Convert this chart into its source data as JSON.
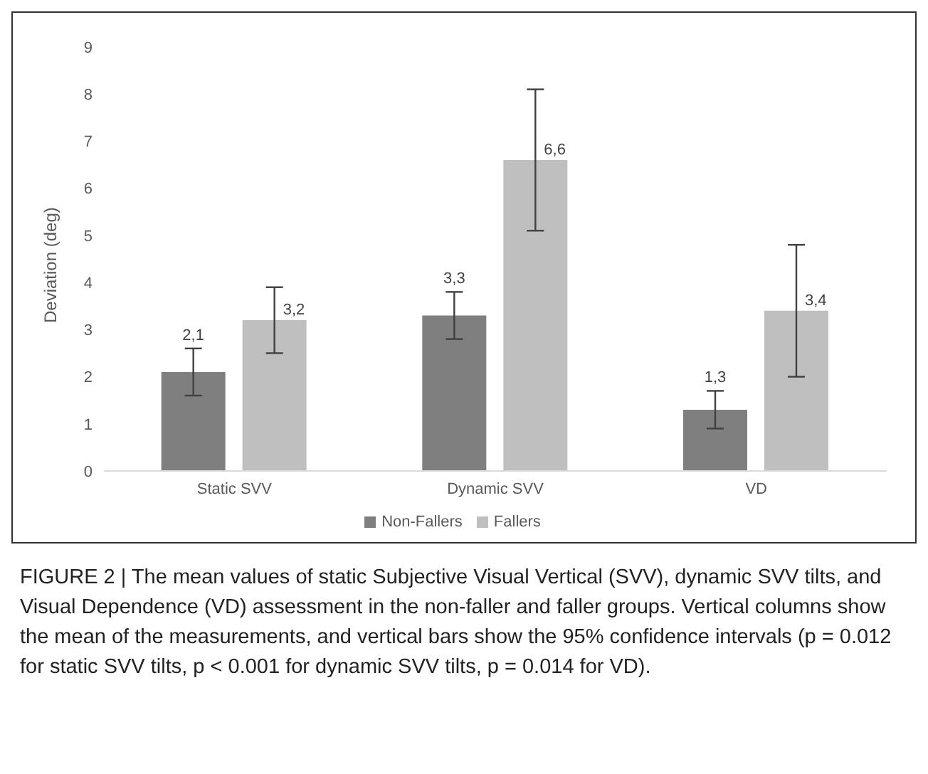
{
  "chart_data": {
    "type": "bar",
    "ylabel": "Deviation (deg)",
    "categories": [
      "Static SVV",
      "Dynamic SVV",
      "VD"
    ],
    "series": [
      {
        "name": "Non-Fallers",
        "color": "#7f7f7f",
        "values": [
          2.1,
          3.3,
          1.3
        ],
        "errors": [
          [
            1.6,
            2.6
          ],
          [
            2.8,
            3.8
          ],
          [
            0.9,
            1.7
          ]
        ],
        "value_labels": [
          "2,1",
          "3,3",
          "1,3"
        ]
      },
      {
        "name": "Fallers",
        "color": "#bfbfbf",
        "values": [
          3.2,
          6.6,
          3.4
        ],
        "errors": [
          [
            2.5,
            3.9
          ],
          [
            5.1,
            8.1
          ],
          [
            2.0,
            4.8
          ]
        ],
        "value_labels": [
          "3,2",
          "6,6",
          "3,4"
        ]
      }
    ],
    "ylim": [
      0,
      9
    ],
    "yticks": [
      0,
      1,
      2,
      3,
      4,
      5,
      6,
      7,
      8,
      9
    ],
    "grid": false,
    "legend": "bottom",
    "annotations": [
      "FIGURE 2 | The mean values of static Subjective Visual Vertical (SVV), dynamic SVV tilts, and Visual Dependence (VD) assessment in the non-faller and faller groups. Vertical columns show the mean of the measurements, and vertical bars show the 95% confidence intervals (p = 0.012 for static SVV tilts, p < 0.001 for dynamic SVV tilts, p = 0.014 for VD)."
    ]
  }
}
